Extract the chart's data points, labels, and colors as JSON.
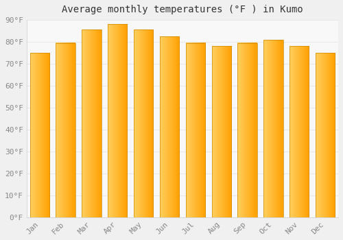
{
  "title": "Average monthly temperatures (°F ) in Kumo",
  "months": [
    "Jan",
    "Feb",
    "Mar",
    "Apr",
    "May",
    "Jun",
    "Jul",
    "Aug",
    "Sep",
    "Oct",
    "Nov",
    "Dec"
  ],
  "values": [
    75,
    79.5,
    85.5,
    88,
    85.5,
    82.5,
    79.5,
    78,
    79.5,
    81,
    78,
    75
  ],
  "bar_color_left": "#FFD060",
  "bar_color_right": "#FFA000",
  "bar_edge_color": "#CC8800",
  "ylim": [
    0,
    90
  ],
  "yticks": [
    0,
    10,
    20,
    30,
    40,
    50,
    60,
    70,
    80,
    90
  ],
  "ytick_labels": [
    "0°F",
    "10°F",
    "20°F",
    "30°F",
    "40°F",
    "50°F",
    "60°F",
    "70°F",
    "80°F",
    "90°F"
  ],
  "bg_color": "#f0f0f0",
  "plot_bg_color": "#f8f8f8",
  "grid_color": "#e8e8e8",
  "title_fontsize": 10,
  "tick_fontsize": 8,
  "tick_color": "#888888",
  "font_family": "monospace",
  "bar_width": 0.75
}
